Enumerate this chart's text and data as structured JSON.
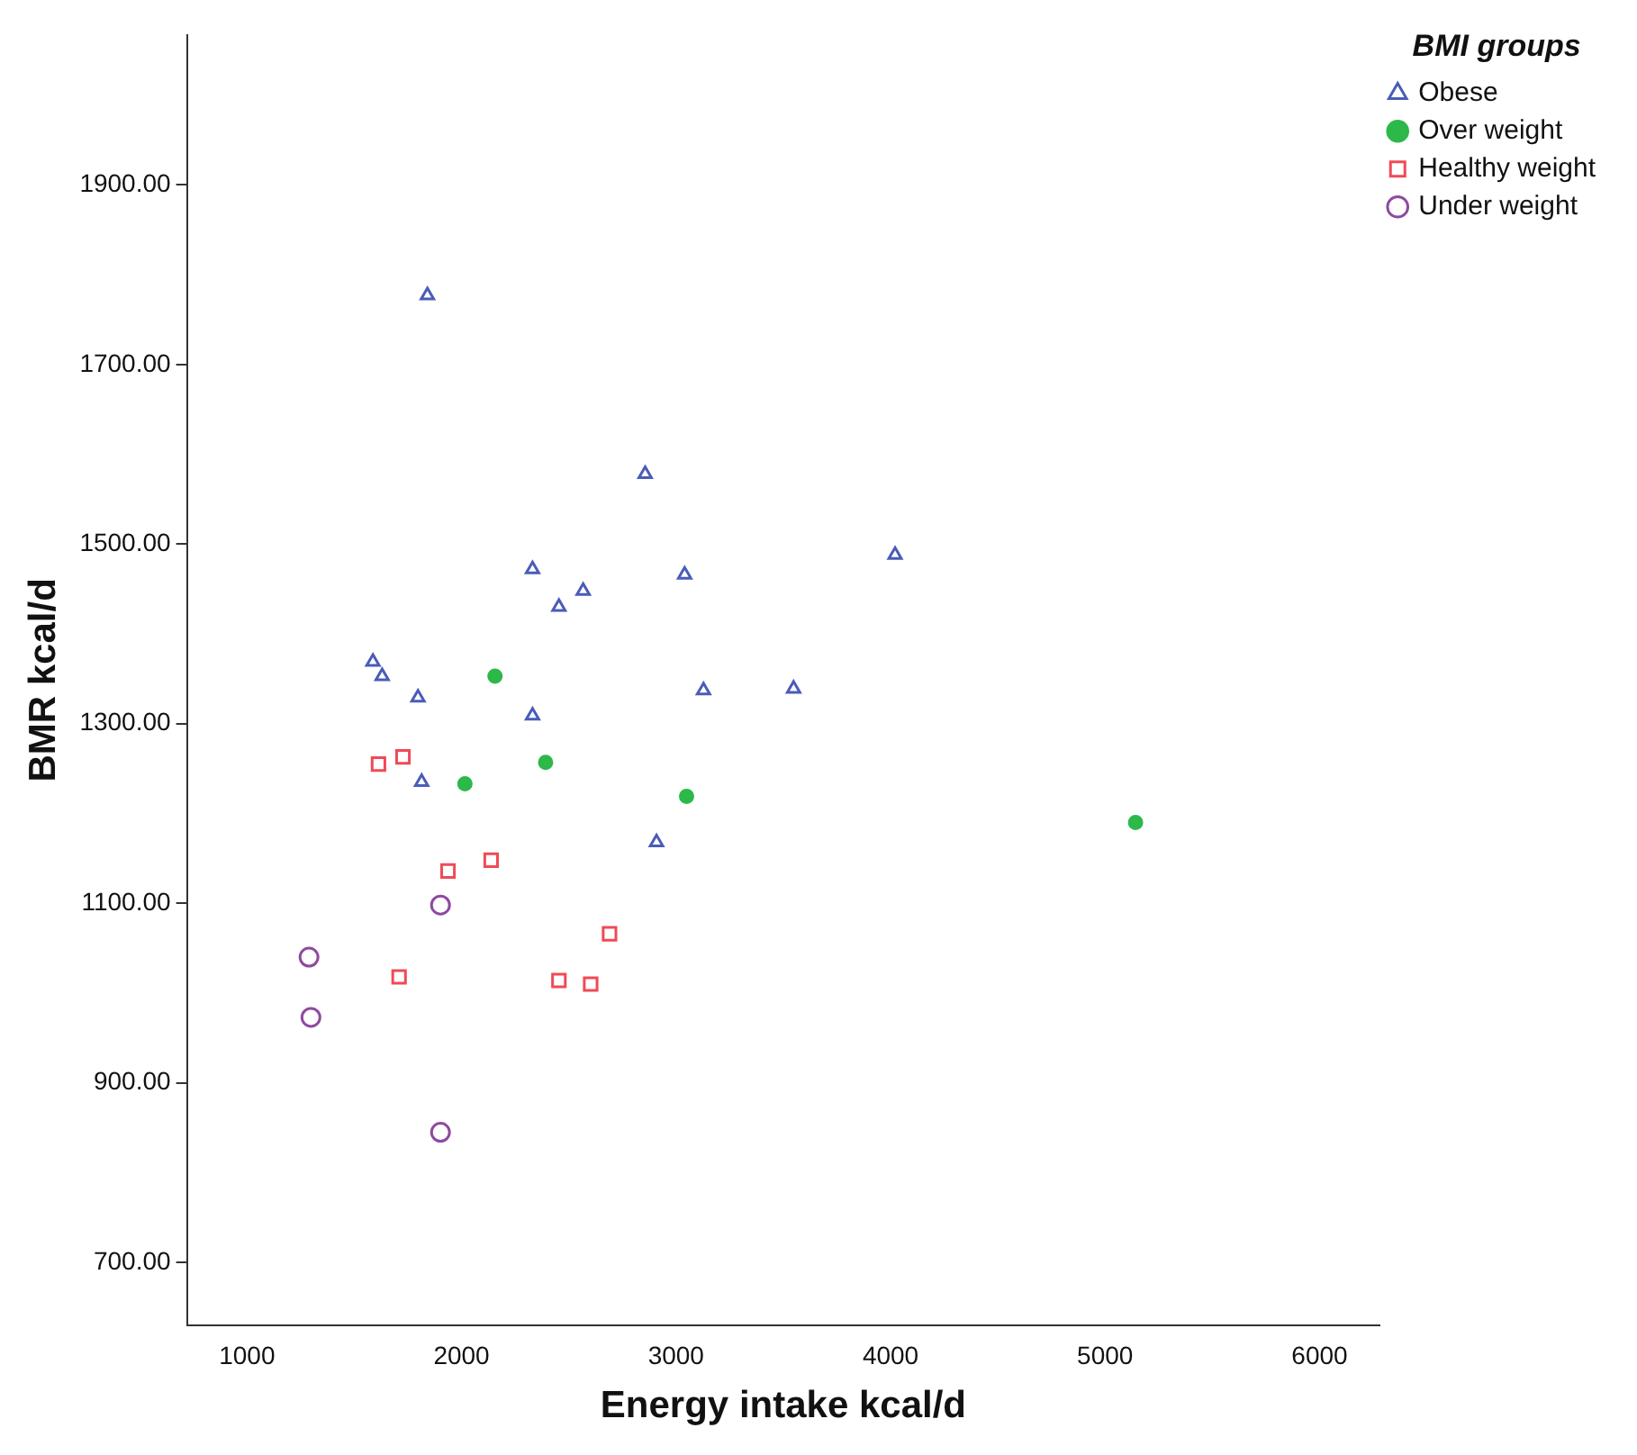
{
  "chart_data": {
    "type": "scatter",
    "xlabel": "Energy intake kcal/d",
    "ylabel": "BMR kcal/d",
    "legend_title": "BMI groups",
    "legend": "top right",
    "grid": false,
    "xlim": [
      720,
      6280
    ],
    "xticks": [
      1000,
      2000,
      3000,
      4000,
      5000,
      6000
    ],
    "ylim": [
      630,
      2067
    ],
    "yticks": [
      {
        "value": 700,
        "label": "700.00"
      },
      {
        "value": 900,
        "label": "900.00"
      },
      {
        "value": 1100,
        "label": "1100.00"
      },
      {
        "value": 1300,
        "label": "1300.00"
      },
      {
        "value": 1500,
        "label": "1500.00"
      },
      {
        "value": 1700,
        "label": "1700.00"
      },
      {
        "value": 1900,
        "label": "1900.00"
      }
    ],
    "series": [
      {
        "name": "Obese",
        "color": "#4a5cb8",
        "marker": "triangle",
        "x": [
          1841,
          2856,
          4021,
          2331,
          2567,
          2454,
          3040,
          1587,
          1630,
          1797,
          2331,
          3128,
          3548,
          1814,
          2909
        ],
        "values": [
          1777,
          1578,
          1488,
          1472,
          1448,
          1430,
          1466,
          1369,
          1353,
          1329,
          1309,
          1337,
          1339,
          1235,
          1168
        ]
      },
      {
        "name": "Over weight",
        "color": "#2db84a",
        "marker": "circle",
        "x": [
          2156,
          2016,
          2392,
          3049,
          5142
        ],
        "values": [
          1353,
          1233,
          1257,
          1219,
          1190
        ]
      },
      {
        "name": "Healthy weight",
        "color": "#f04a55",
        "marker": "square",
        "x": [
          1613,
          1727,
          1937,
          2138,
          2690,
          1709,
          2454,
          2602
        ],
        "values": [
          1255,
          1263,
          1136,
          1148,
          1066,
          1018,
          1014,
          1010
        ]
      },
      {
        "name": "Under weight",
        "color": "#8e4a9e",
        "marker": "circle",
        "x": [
          1902,
          1289,
          1298,
          1902
        ],
        "values": [
          1098,
          1040,
          973,
          845
        ]
      }
    ]
  }
}
